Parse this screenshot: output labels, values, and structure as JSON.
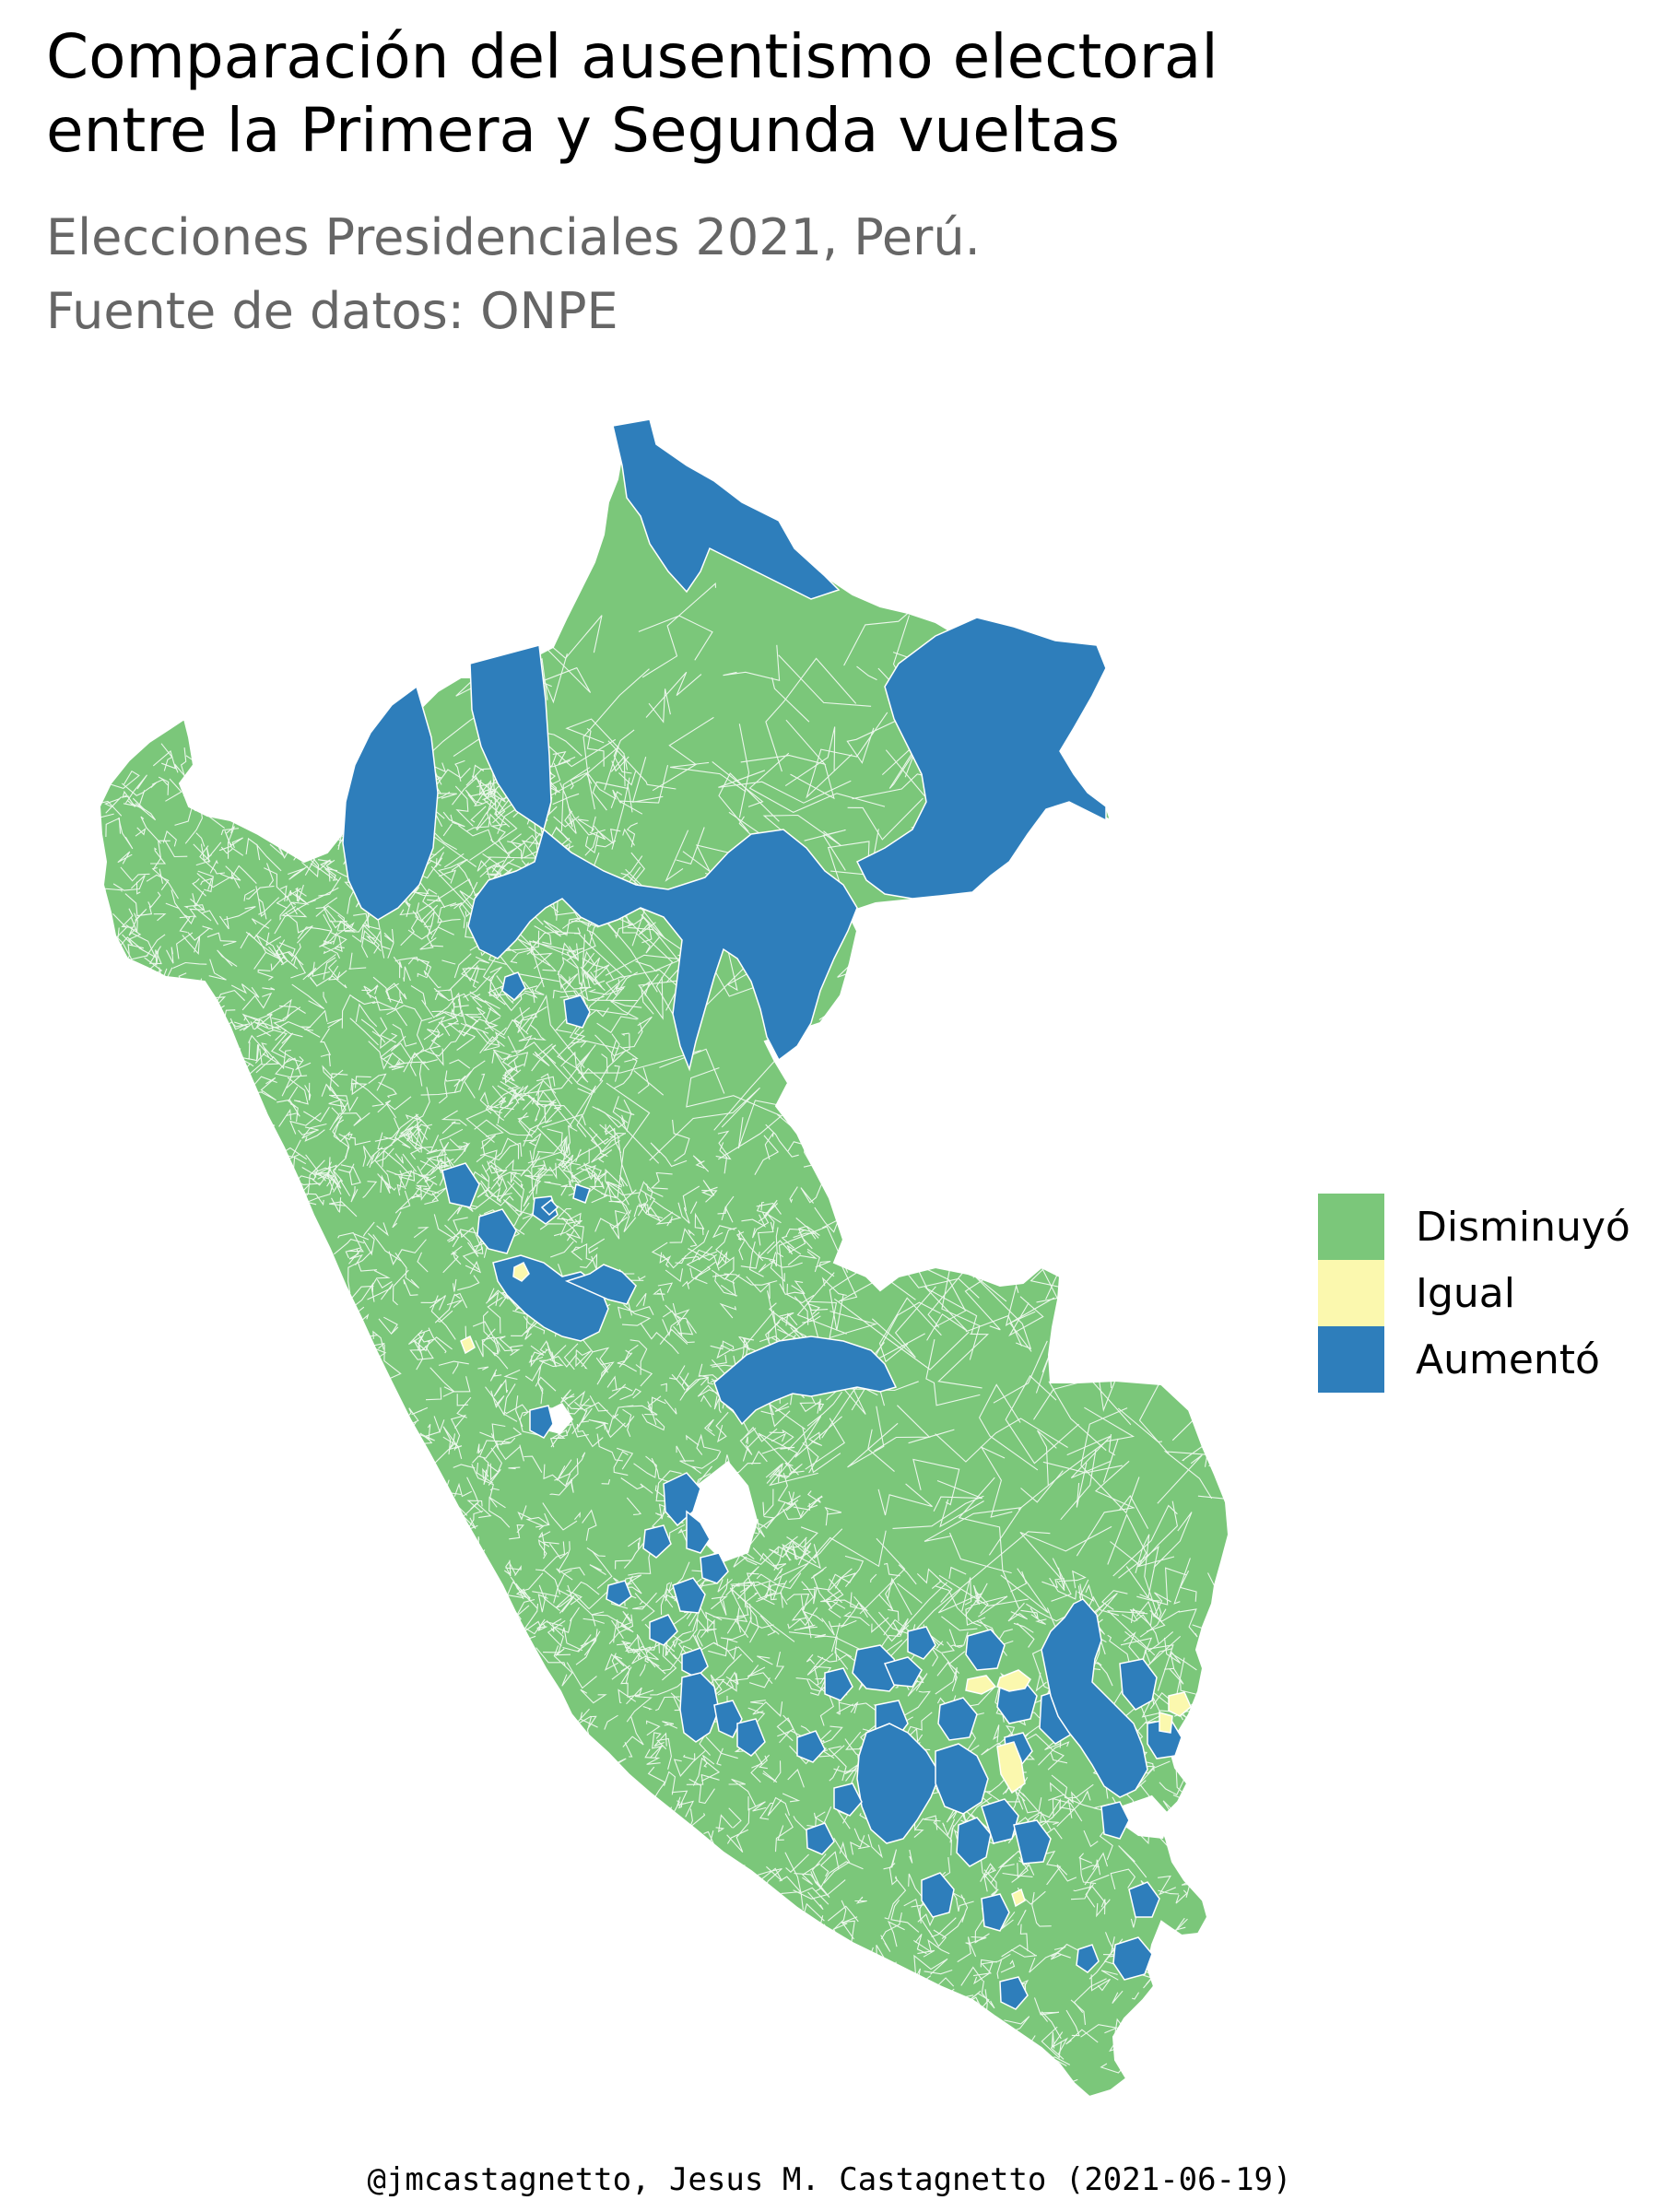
{
  "header": {
    "title_line1": "Comparación del ausentismo electoral",
    "title_line2": "entre la Primera y Segunda vueltas",
    "subtitle_line1": "Elecciones Presidenciales 2021, Perú.",
    "subtitle_line2": "Fuente de datos: ONPE"
  },
  "legend": {
    "items": [
      {
        "label": "Disminuyó",
        "color": "#7BC77A"
      },
      {
        "label": "Igual",
        "color": "#FBF8AE"
      },
      {
        "label": "Aumentó",
        "color": "#2E7EBB"
      }
    ]
  },
  "map": {
    "region": "Perú",
    "base_fill": "#7BC77A",
    "border_color": "#ffffff"
  },
  "caption": "@jmcastagnetto, Jesus M. Castagnetto (2021-06-19)"
}
